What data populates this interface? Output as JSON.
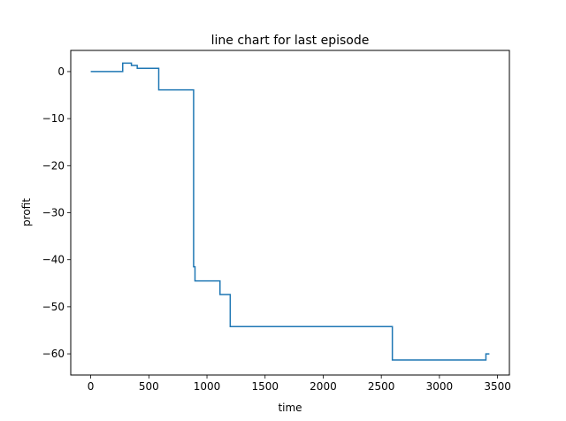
{
  "chart_data": {
    "type": "line",
    "title": "line chart for last episode",
    "xlabel": "time",
    "ylabel": "profit",
    "xlim": [
      -172,
      3602
    ],
    "ylim": [
      -64.5,
      4.5
    ],
    "xticks": [
      0,
      500,
      1000,
      1500,
      2000,
      2500,
      3000,
      3500
    ],
    "yticks": [
      0,
      -10,
      -20,
      -30,
      -40,
      -50,
      -60
    ],
    "grid": false,
    "series": [
      {
        "color": "#1f77b4",
        "step": true,
        "points": [
          [
            0,
            0
          ],
          [
            275,
            0
          ],
          [
            275,
            1.8
          ],
          [
            350,
            1.8
          ],
          [
            350,
            1.3
          ],
          [
            400,
            1.3
          ],
          [
            400,
            0.7
          ],
          [
            585,
            0.7
          ],
          [
            585,
            -3.9
          ],
          [
            885,
            -3.9
          ],
          [
            885,
            -41.5
          ],
          [
            897,
            -41.5
          ],
          [
            897,
            -44.5
          ],
          [
            1112,
            -44.5
          ],
          [
            1112,
            -47.4
          ],
          [
            1200,
            -47.4
          ],
          [
            1200,
            -54.2
          ],
          [
            2595,
            -54.2
          ],
          [
            2595,
            -61.3
          ],
          [
            3400,
            -61.3
          ],
          [
            3400,
            -60.0
          ],
          [
            3430,
            -60.0
          ]
        ]
      }
    ]
  }
}
